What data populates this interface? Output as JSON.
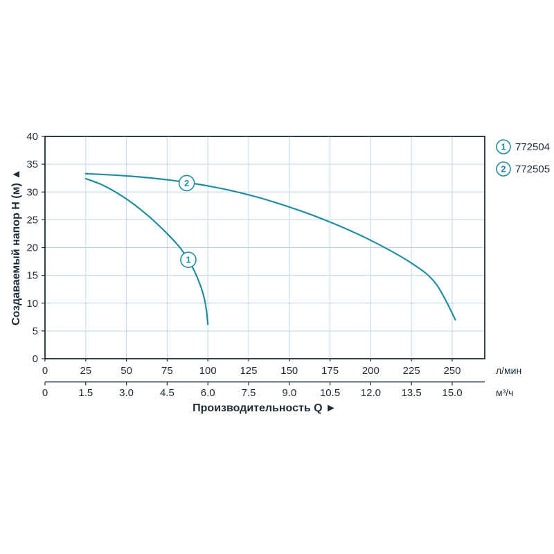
{
  "chart_data": {
    "type": "line",
    "title": "",
    "ylabel": "Создаваемый напор H (м) ▲",
    "xlabel": "Производительность Q ►",
    "ylim": [
      0,
      40
    ],
    "xlim": [
      0,
      270
    ],
    "grid": true,
    "legend_position": "top-right",
    "y_axis": {
      "values": [
        0,
        5,
        10,
        15,
        20,
        25,
        30,
        35,
        40
      ],
      "labels": [
        "0",
        "5",
        "10",
        "15",
        "20",
        "25",
        "30",
        "35",
        "40"
      ]
    },
    "x_axis_lmin": {
      "unit": "л/мин",
      "values": [
        0,
        25,
        50,
        75,
        100,
        125,
        150,
        175,
        200,
        225,
        250
      ],
      "labels": [
        "0",
        "25",
        "50",
        "75",
        "100",
        "125",
        "150",
        "175",
        "200",
        "225",
        "250"
      ]
    },
    "x_axis_m3h": {
      "unit": "м³/ч",
      "values": [
        0,
        25,
        50,
        75,
        100,
        125,
        150,
        175,
        200,
        225,
        250
      ],
      "labels": [
        "0",
        "1.5",
        "3.0",
        "4.5",
        "6.0",
        "7.5",
        "9.0",
        "10.5",
        "12.0",
        "13.5",
        "15.0"
      ]
    },
    "series": [
      {
        "name": "772504",
        "marker": "1",
        "marker_at": [
          88,
          17.8
        ],
        "points": [
          [
            25,
            32.4
          ],
          [
            35,
            31.3
          ],
          [
            45,
            29.7
          ],
          [
            55,
            27.7
          ],
          [
            65,
            25.3
          ],
          [
            75,
            22.5
          ],
          [
            82,
            20.3
          ],
          [
            88,
            17.8
          ],
          [
            92,
            15.6
          ],
          [
            95,
            13.5
          ],
          [
            97.5,
            11.2
          ],
          [
            99,
            8.9
          ],
          [
            100,
            6.2
          ]
        ]
      },
      {
        "name": "772505",
        "marker": "2",
        "marker_at": [
          87,
          31.6
        ],
        "points": [
          [
            25,
            33.3
          ],
          [
            50,
            32.9
          ],
          [
            75,
            32.2
          ],
          [
            100,
            31.1
          ],
          [
            125,
            29.5
          ],
          [
            150,
            27.3
          ],
          [
            175,
            24.6
          ],
          [
            200,
            21.3
          ],
          [
            225,
            17.2
          ],
          [
            240,
            13.5
          ],
          [
            252,
            7.0
          ]
        ]
      }
    ],
    "colors": {
      "curve": "#1f8da2",
      "grid": "#bdd7e3",
      "axis": "#1d2d36",
      "text": "#1d2d36"
    }
  }
}
